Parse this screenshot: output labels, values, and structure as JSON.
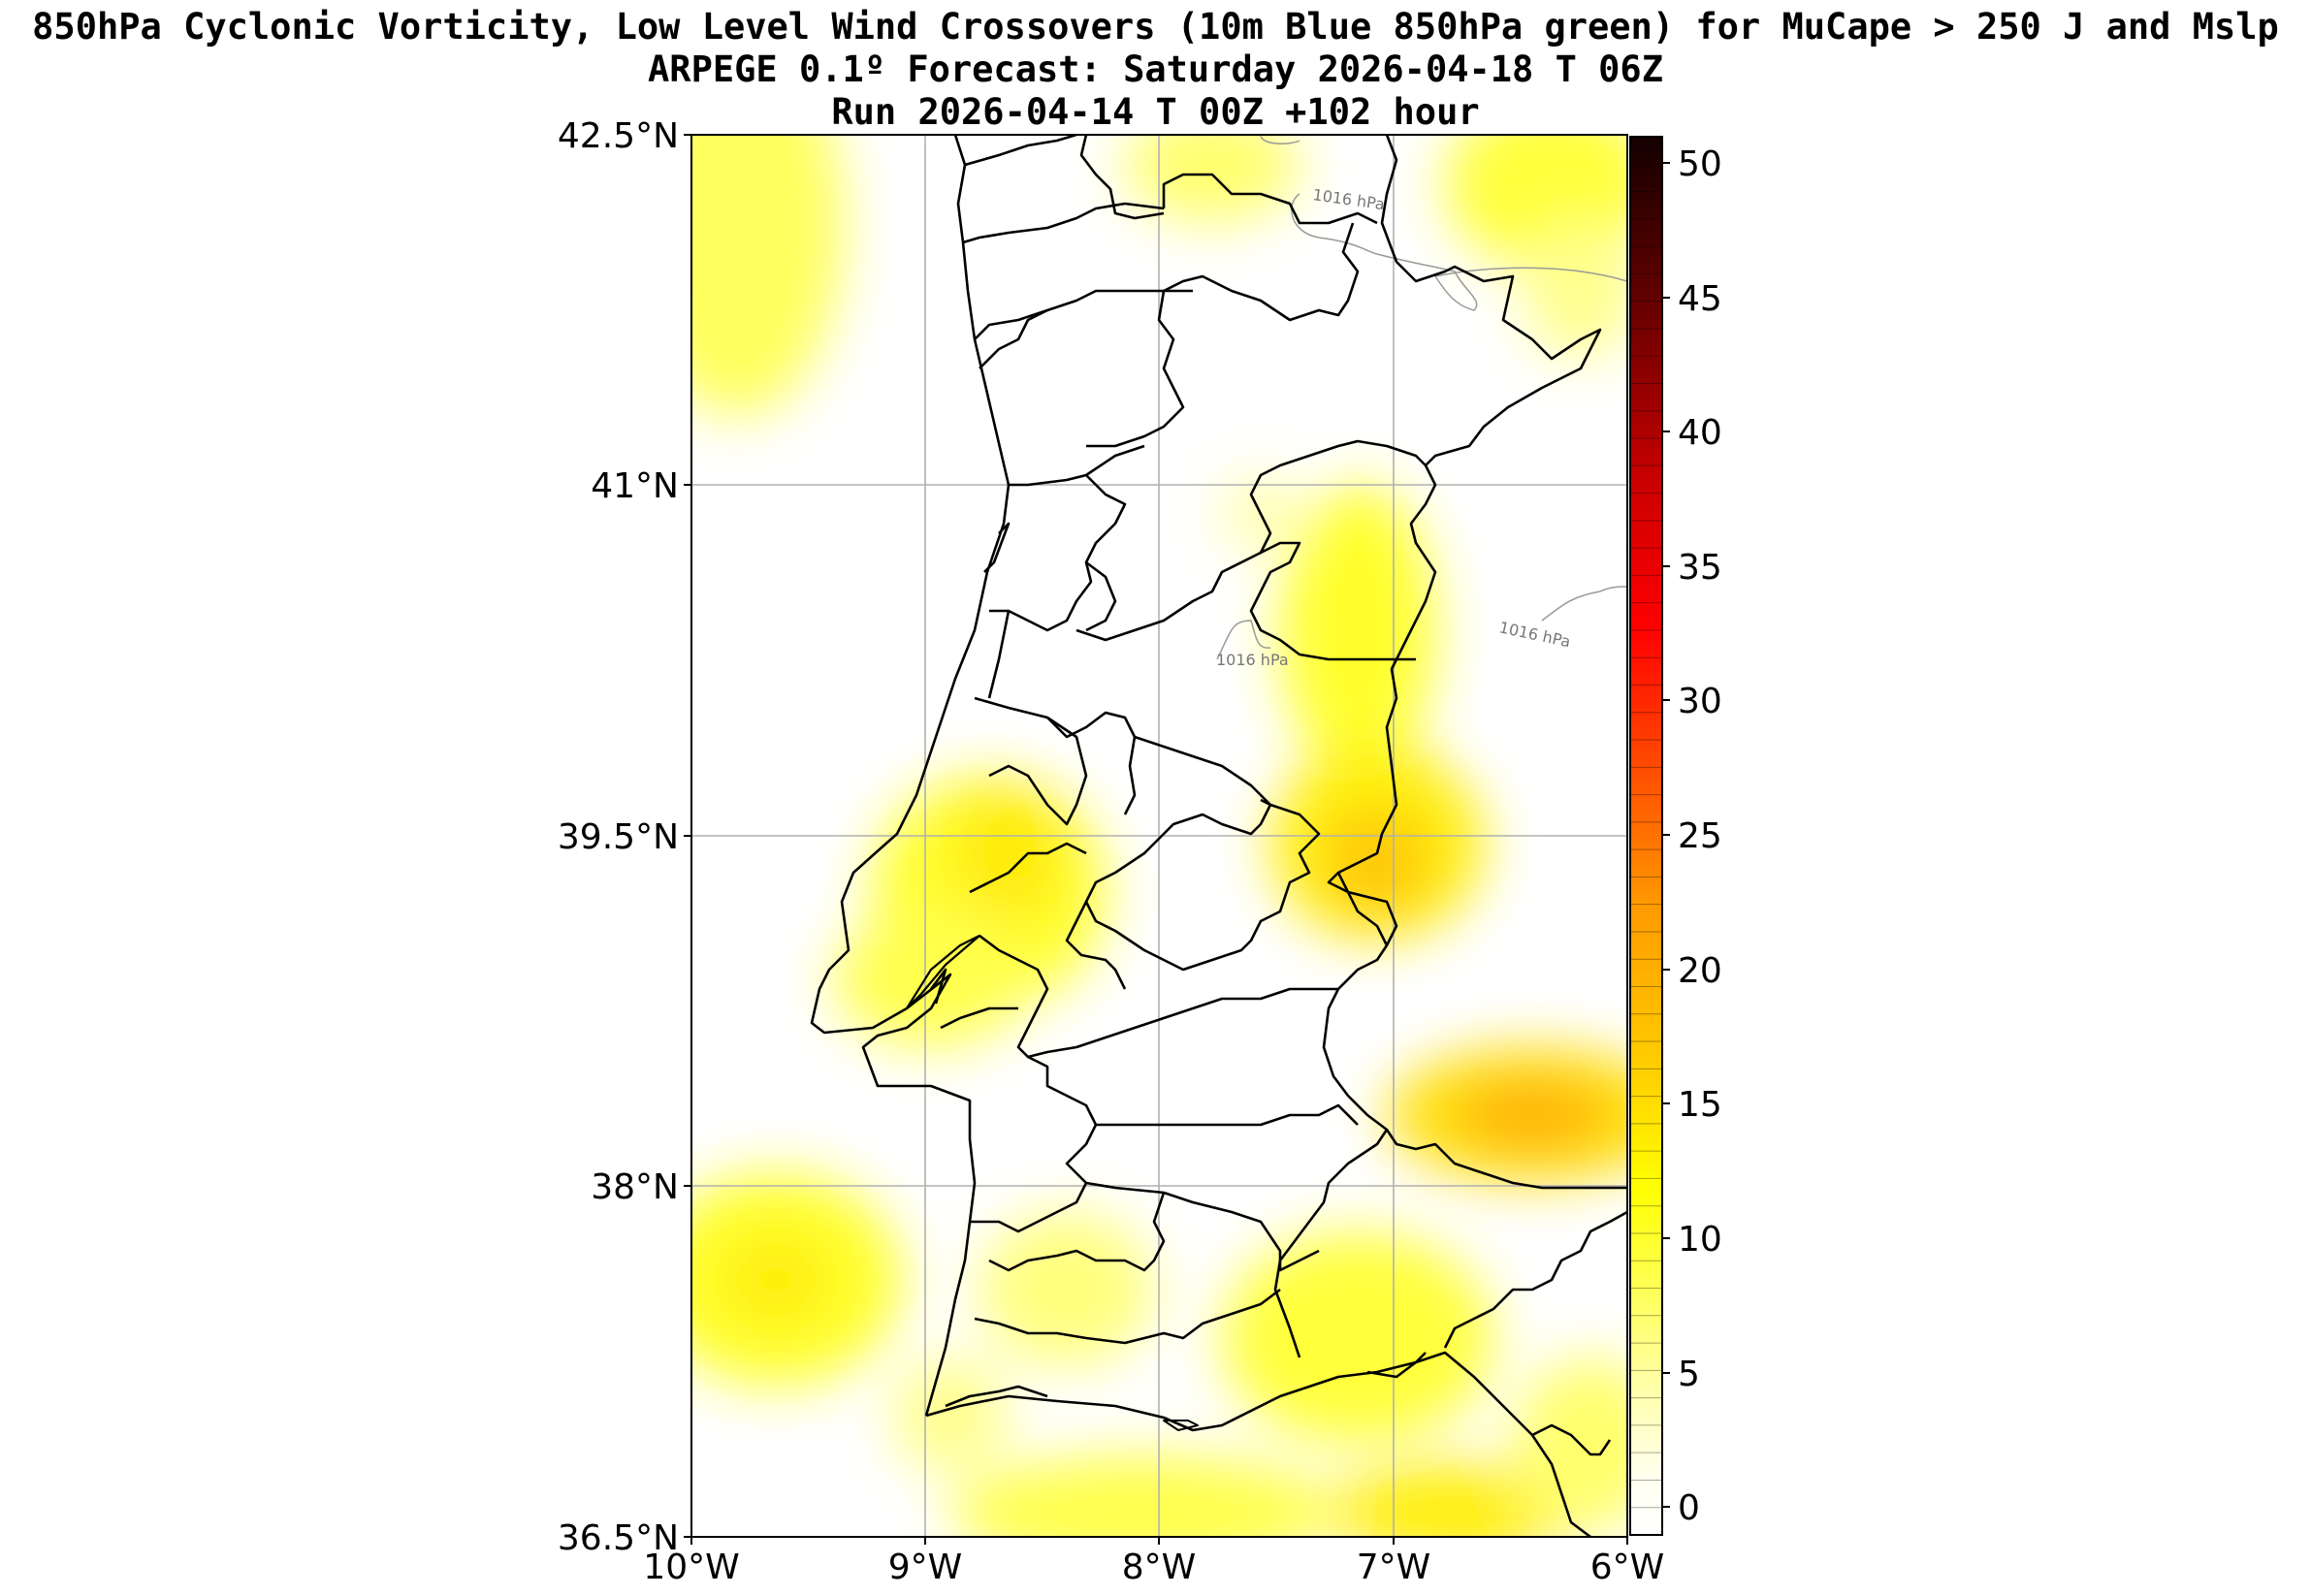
{
  "titles": {
    "line1": "850hPa Cyclonic Vorticity, Low Level Wind Crossovers (10m Blue 850hPa green) for MuCape > 250 J and Mslp",
    "line2": "ARPEGE 0.1º Forecast: Saturday 2026-04-18 T 06Z",
    "line3": "Run 2026-04-14 T 00Z +102 hour"
  },
  "map": {
    "lat_range": [
      36.5,
      42.5
    ],
    "lon_range": [
      -10,
      -6
    ],
    "grid": true,
    "lat_ticks": [
      "42.5°N",
      "41°N",
      "39.5°N",
      "38°N",
      "36.5°N"
    ],
    "lon_ticks": [
      "10°W",
      "9°W",
      "8°W",
      "7°W",
      "6°W"
    ],
    "isobar_labels": [
      "1016 hPa",
      "1016 hPa",
      "1016 hPa"
    ],
    "fill_colors": [
      "#ffffff",
      "#ffff99",
      "#ffff00",
      "#ffd500",
      "#ff9900",
      "#ff3300",
      "#cc0000",
      "#660000",
      "#1a0000"
    ]
  },
  "colorbar": {
    "min": 0,
    "max": 51,
    "ticks": [
      "50",
      "45",
      "40",
      "35",
      "30",
      "25",
      "20",
      "15",
      "10",
      "5",
      "0"
    ]
  }
}
